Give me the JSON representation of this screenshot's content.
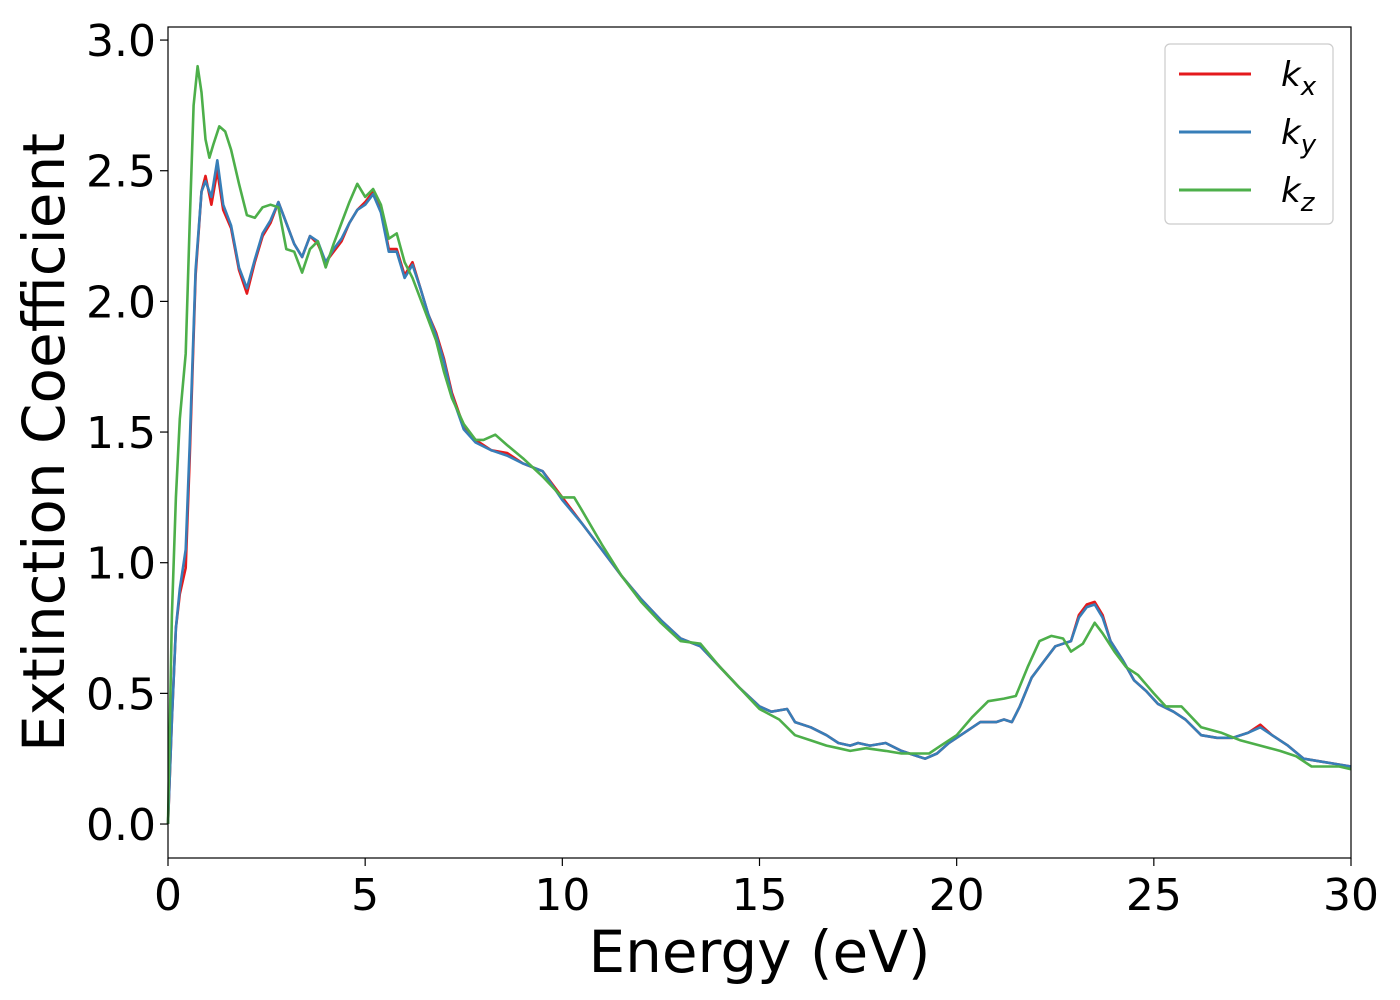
{
  "chart_data": {
    "type": "line",
    "xlabel": "Energy (eV)",
    "ylabel": "Extinction Coefficient",
    "xlim": [
      0,
      30
    ],
    "ylim": [
      -0.13,
      3.05
    ],
    "xticks": [
      0,
      5,
      10,
      15,
      20,
      25,
      30
    ],
    "xtick_labels": [
      "0",
      "5",
      "10",
      "15",
      "20",
      "25",
      "30"
    ],
    "yticks": [
      0.0,
      0.5,
      1.0,
      1.5,
      2.0,
      2.5,
      3.0
    ],
    "ytick_labels": [
      "0.0",
      "0.5",
      "1.0",
      "1.5",
      "2.0",
      "2.5",
      "3.0"
    ],
    "grid": false,
    "legend_position": "top-right",
    "series": [
      {
        "name": "k_x",
        "label_base": "k",
        "label_sub": "x",
        "color": "#e41a1c",
        "points": [
          [
            0,
            0
          ],
          [
            0.1,
            0.4
          ],
          [
            0.2,
            0.75
          ],
          [
            0.3,
            0.88
          ],
          [
            0.45,
            0.98
          ],
          [
            0.55,
            1.4
          ],
          [
            0.7,
            2.1
          ],
          [
            0.85,
            2.42
          ],
          [
            0.95,
            2.48
          ],
          [
            1.1,
            2.37
          ],
          [
            1.25,
            2.5
          ],
          [
            1.4,
            2.35
          ],
          [
            1.6,
            2.28
          ],
          [
            1.8,
            2.12
          ],
          [
            2.0,
            2.03
          ],
          [
            2.2,
            2.15
          ],
          [
            2.4,
            2.25
          ],
          [
            2.6,
            2.3
          ],
          [
            2.8,
            2.38
          ],
          [
            3.0,
            2.3
          ],
          [
            3.2,
            2.22
          ],
          [
            3.4,
            2.17
          ],
          [
            3.6,
            2.25
          ],
          [
            3.8,
            2.22
          ],
          [
            4.0,
            2.15
          ],
          [
            4.2,
            2.19
          ],
          [
            4.4,
            2.23
          ],
          [
            4.6,
            2.3
          ],
          [
            4.8,
            2.35
          ],
          [
            5.0,
            2.38
          ],
          [
            5.2,
            2.42
          ],
          [
            5.4,
            2.35
          ],
          [
            5.6,
            2.2
          ],
          [
            5.8,
            2.2
          ],
          [
            6.0,
            2.1
          ],
          [
            6.2,
            2.15
          ],
          [
            6.4,
            2.05
          ],
          [
            6.6,
            1.95
          ],
          [
            6.8,
            1.88
          ],
          [
            7.0,
            1.78
          ],
          [
            7.2,
            1.65
          ],
          [
            7.5,
            1.52
          ],
          [
            7.8,
            1.47
          ],
          [
            8.2,
            1.43
          ],
          [
            8.6,
            1.42
          ],
          [
            9.0,
            1.38
          ],
          [
            9.5,
            1.35
          ],
          [
            10.0,
            1.25
          ],
          [
            10.5,
            1.15
          ],
          [
            11.0,
            1.05
          ],
          [
            11.5,
            0.95
          ],
          [
            12.0,
            0.86
          ],
          [
            12.5,
            0.78
          ],
          [
            13.0,
            0.71
          ],
          [
            13.5,
            0.68
          ],
          [
            14.0,
            0.6
          ],
          [
            14.5,
            0.52
          ],
          [
            15.0,
            0.45
          ],
          [
            15.3,
            0.43
          ],
          [
            15.7,
            0.44
          ],
          [
            15.9,
            0.39
          ],
          [
            16.3,
            0.37
          ],
          [
            16.7,
            0.34
          ],
          [
            17.0,
            0.31
          ],
          [
            17.3,
            0.3
          ],
          [
            17.5,
            0.31
          ],
          [
            17.8,
            0.3
          ],
          [
            18.2,
            0.31
          ],
          [
            18.6,
            0.28
          ],
          [
            19.0,
            0.26
          ],
          [
            19.2,
            0.25
          ],
          [
            19.5,
            0.27
          ],
          [
            19.8,
            0.31
          ],
          [
            20.2,
            0.35
          ],
          [
            20.6,
            0.39
          ],
          [
            21.0,
            0.39
          ],
          [
            21.2,
            0.4
          ],
          [
            21.4,
            0.39
          ],
          [
            21.6,
            0.45
          ],
          [
            21.9,
            0.56
          ],
          [
            22.2,
            0.62
          ],
          [
            22.5,
            0.68
          ],
          [
            22.7,
            0.69
          ],
          [
            22.9,
            0.7
          ],
          [
            23.1,
            0.8
          ],
          [
            23.3,
            0.84
          ],
          [
            23.5,
            0.85
          ],
          [
            23.7,
            0.8
          ],
          [
            23.9,
            0.7
          ],
          [
            24.2,
            0.63
          ],
          [
            24.5,
            0.55
          ],
          [
            24.8,
            0.51
          ],
          [
            25.1,
            0.46
          ],
          [
            25.5,
            0.43
          ],
          [
            25.8,
            0.4
          ],
          [
            26.2,
            0.34
          ],
          [
            26.6,
            0.33
          ],
          [
            27.0,
            0.33
          ],
          [
            27.4,
            0.35
          ],
          [
            27.7,
            0.38
          ],
          [
            28.0,
            0.34
          ],
          [
            28.4,
            0.3
          ],
          [
            28.8,
            0.25
          ],
          [
            29.2,
            0.24
          ],
          [
            29.6,
            0.23
          ],
          [
            30.0,
            0.22
          ]
        ]
      },
      {
        "name": "k_y",
        "label_base": "k",
        "label_sub": "y",
        "color": "#377eb8",
        "points": [
          [
            0,
            0
          ],
          [
            0.1,
            0.4
          ],
          [
            0.2,
            0.75
          ],
          [
            0.3,
            0.9
          ],
          [
            0.45,
            1.05
          ],
          [
            0.55,
            1.45
          ],
          [
            0.7,
            2.12
          ],
          [
            0.85,
            2.42
          ],
          [
            0.95,
            2.46
          ],
          [
            1.1,
            2.4
          ],
          [
            1.25,
            2.54
          ],
          [
            1.4,
            2.37
          ],
          [
            1.6,
            2.29
          ],
          [
            1.8,
            2.13
          ],
          [
            2.0,
            2.05
          ],
          [
            2.2,
            2.16
          ],
          [
            2.4,
            2.26
          ],
          [
            2.6,
            2.31
          ],
          [
            2.8,
            2.38
          ],
          [
            3.0,
            2.3
          ],
          [
            3.2,
            2.22
          ],
          [
            3.4,
            2.17
          ],
          [
            3.6,
            2.25
          ],
          [
            3.8,
            2.23
          ],
          [
            4.0,
            2.15
          ],
          [
            4.2,
            2.2
          ],
          [
            4.4,
            2.24
          ],
          [
            4.6,
            2.3
          ],
          [
            4.8,
            2.35
          ],
          [
            5.0,
            2.37
          ],
          [
            5.2,
            2.41
          ],
          [
            5.4,
            2.34
          ],
          [
            5.6,
            2.19
          ],
          [
            5.8,
            2.19
          ],
          [
            6.0,
            2.09
          ],
          [
            6.2,
            2.14
          ],
          [
            6.4,
            2.05
          ],
          [
            6.6,
            1.95
          ],
          [
            6.8,
            1.87
          ],
          [
            7.0,
            1.77
          ],
          [
            7.2,
            1.64
          ],
          [
            7.5,
            1.51
          ],
          [
            7.8,
            1.46
          ],
          [
            8.2,
            1.43
          ],
          [
            8.6,
            1.41
          ],
          [
            9.0,
            1.38
          ],
          [
            9.5,
            1.35
          ],
          [
            10.0,
            1.24
          ],
          [
            10.5,
            1.15
          ],
          [
            11.0,
            1.05
          ],
          [
            11.5,
            0.95
          ],
          [
            12.0,
            0.86
          ],
          [
            12.5,
            0.78
          ],
          [
            13.0,
            0.71
          ],
          [
            13.5,
            0.68
          ],
          [
            14.0,
            0.6
          ],
          [
            14.5,
            0.52
          ],
          [
            15.0,
            0.45
          ],
          [
            15.3,
            0.43
          ],
          [
            15.7,
            0.44
          ],
          [
            15.9,
            0.39
          ],
          [
            16.3,
            0.37
          ],
          [
            16.7,
            0.34
          ],
          [
            17.0,
            0.31
          ],
          [
            17.3,
            0.3
          ],
          [
            17.5,
            0.31
          ],
          [
            17.8,
            0.3
          ],
          [
            18.2,
            0.31
          ],
          [
            18.6,
            0.28
          ],
          [
            19.0,
            0.26
          ],
          [
            19.2,
            0.25
          ],
          [
            19.5,
            0.27
          ],
          [
            19.8,
            0.31
          ],
          [
            20.2,
            0.35
          ],
          [
            20.6,
            0.39
          ],
          [
            21.0,
            0.39
          ],
          [
            21.2,
            0.4
          ],
          [
            21.4,
            0.39
          ],
          [
            21.6,
            0.45
          ],
          [
            21.9,
            0.56
          ],
          [
            22.2,
            0.62
          ],
          [
            22.5,
            0.68
          ],
          [
            22.7,
            0.69
          ],
          [
            22.9,
            0.7
          ],
          [
            23.1,
            0.79
          ],
          [
            23.3,
            0.83
          ],
          [
            23.5,
            0.84
          ],
          [
            23.7,
            0.79
          ],
          [
            23.9,
            0.7
          ],
          [
            24.2,
            0.63
          ],
          [
            24.5,
            0.55
          ],
          [
            24.8,
            0.51
          ],
          [
            25.1,
            0.46
          ],
          [
            25.5,
            0.43
          ],
          [
            25.8,
            0.4
          ],
          [
            26.2,
            0.34
          ],
          [
            26.6,
            0.33
          ],
          [
            27.0,
            0.33
          ],
          [
            27.4,
            0.35
          ],
          [
            27.7,
            0.37
          ],
          [
            28.0,
            0.34
          ],
          [
            28.4,
            0.3
          ],
          [
            28.8,
            0.25
          ],
          [
            29.2,
            0.24
          ],
          [
            29.6,
            0.23
          ],
          [
            30.0,
            0.22
          ]
        ]
      },
      {
        "name": "k_z",
        "label_base": "k",
        "label_sub": "z",
        "color": "#4daf4a",
        "points": [
          [
            0,
            0
          ],
          [
            0.1,
            0.8
          ],
          [
            0.2,
            1.25
          ],
          [
            0.3,
            1.55
          ],
          [
            0.45,
            1.8
          ],
          [
            0.55,
            2.3
          ],
          [
            0.65,
            2.75
          ],
          [
            0.75,
            2.9
          ],
          [
            0.85,
            2.8
          ],
          [
            0.95,
            2.62
          ],
          [
            1.05,
            2.55
          ],
          [
            1.15,
            2.6
          ],
          [
            1.3,
            2.67
          ],
          [
            1.45,
            2.65
          ],
          [
            1.6,
            2.58
          ],
          [
            1.8,
            2.45
          ],
          [
            2.0,
            2.33
          ],
          [
            2.2,
            2.32
          ],
          [
            2.4,
            2.36
          ],
          [
            2.6,
            2.37
          ],
          [
            2.8,
            2.36
          ],
          [
            3.0,
            2.2
          ],
          [
            3.2,
            2.19
          ],
          [
            3.4,
            2.11
          ],
          [
            3.6,
            2.2
          ],
          [
            3.8,
            2.23
          ],
          [
            4.0,
            2.13
          ],
          [
            4.2,
            2.22
          ],
          [
            4.4,
            2.3
          ],
          [
            4.6,
            2.38
          ],
          [
            4.8,
            2.45
          ],
          [
            5.0,
            2.4
          ],
          [
            5.2,
            2.43
          ],
          [
            5.4,
            2.37
          ],
          [
            5.6,
            2.24
          ],
          [
            5.8,
            2.26
          ],
          [
            6.0,
            2.15
          ],
          [
            6.2,
            2.09
          ],
          [
            6.4,
            2.01
          ],
          [
            6.6,
            1.93
          ],
          [
            6.8,
            1.85
          ],
          [
            7.0,
            1.73
          ],
          [
            7.2,
            1.63
          ],
          [
            7.5,
            1.53
          ],
          [
            7.8,
            1.47
          ],
          [
            8.0,
            1.47
          ],
          [
            8.3,
            1.49
          ],
          [
            8.6,
            1.45
          ],
          [
            9.0,
            1.4
          ],
          [
            9.5,
            1.33
          ],
          [
            10.0,
            1.25
          ],
          [
            10.3,
            1.25
          ],
          [
            10.5,
            1.2
          ],
          [
            11.0,
            1.07
          ],
          [
            11.5,
            0.95
          ],
          [
            12.0,
            0.85
          ],
          [
            12.5,
            0.77
          ],
          [
            13.0,
            0.7
          ],
          [
            13.5,
            0.69
          ],
          [
            14.0,
            0.6
          ],
          [
            14.5,
            0.52
          ],
          [
            15.0,
            0.44
          ],
          [
            15.5,
            0.4
          ],
          [
            15.9,
            0.34
          ],
          [
            16.3,
            0.32
          ],
          [
            16.7,
            0.3
          ],
          [
            17.0,
            0.29
          ],
          [
            17.3,
            0.28
          ],
          [
            17.7,
            0.29
          ],
          [
            18.2,
            0.28
          ],
          [
            18.6,
            0.27
          ],
          [
            19.0,
            0.27
          ],
          [
            19.3,
            0.27
          ],
          [
            19.6,
            0.3
          ],
          [
            20.0,
            0.34
          ],
          [
            20.4,
            0.41
          ],
          [
            20.8,
            0.47
          ],
          [
            21.2,
            0.48
          ],
          [
            21.5,
            0.49
          ],
          [
            21.8,
            0.6
          ],
          [
            22.1,
            0.7
          ],
          [
            22.4,
            0.72
          ],
          [
            22.7,
            0.71
          ],
          [
            22.9,
            0.66
          ],
          [
            23.2,
            0.69
          ],
          [
            23.5,
            0.77
          ],
          [
            23.7,
            0.73
          ],
          [
            24.0,
            0.66
          ],
          [
            24.3,
            0.6
          ],
          [
            24.6,
            0.57
          ],
          [
            25.0,
            0.5
          ],
          [
            25.3,
            0.45
          ],
          [
            25.7,
            0.45
          ],
          [
            26.2,
            0.37
          ],
          [
            26.7,
            0.35
          ],
          [
            27.2,
            0.32
          ],
          [
            27.7,
            0.3
          ],
          [
            28.2,
            0.28
          ],
          [
            28.6,
            0.26
          ],
          [
            29.0,
            0.22
          ],
          [
            29.4,
            0.22
          ],
          [
            29.7,
            0.22
          ],
          [
            30.0,
            0.21
          ]
        ]
      }
    ]
  }
}
